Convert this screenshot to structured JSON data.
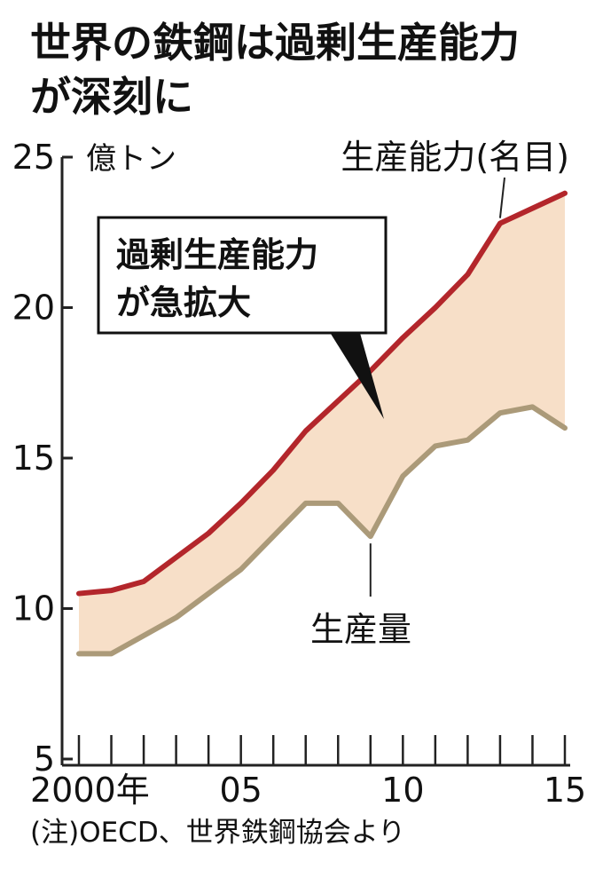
{
  "title_lines": [
    "世界の鉄鋼は過剰生産能力",
    "が深刻に"
  ],
  "note": "(注)OECD、世界鉄鋼協会より",
  "chart_data": {
    "type": "area",
    "title": "世界の鉄鋼は過剰生産能力が深刻に",
    "unit": "億トン",
    "ylim": [
      5,
      25
    ],
    "yticks": [
      5,
      10,
      15,
      20,
      25
    ],
    "xlim": [
      2000,
      2015
    ],
    "xticks": [
      {
        "x": 2000,
        "label": "2000年"
      },
      {
        "x": 2005,
        "label": "05"
      },
      {
        "x": 2010,
        "label": "10"
      },
      {
        "x": 2015,
        "label": "15"
      }
    ],
    "x": [
      2000,
      2001,
      2002,
      2003,
      2004,
      2005,
      2006,
      2007,
      2008,
      2009,
      2010,
      2011,
      2012,
      2013,
      2014,
      2015
    ],
    "series": [
      {
        "name": "生産能力(名目)",
        "color": "#b3262b",
        "values": [
          10.5,
          10.6,
          10.9,
          11.7,
          12.5,
          13.5,
          14.6,
          15.9,
          16.9,
          17.9,
          19.0,
          20.0,
          21.1,
          22.8,
          23.3,
          23.8
        ]
      },
      {
        "name": "生産量",
        "color": "#ab9a79",
        "values": [
          8.5,
          8.5,
          9.1,
          9.7,
          10.5,
          11.3,
          12.4,
          13.5,
          13.5,
          12.4,
          14.4,
          15.4,
          15.6,
          16.5,
          16.7,
          16.0
        ]
      }
    ],
    "fill_color": "#f7dfc8",
    "annotation": [
      "過剰生産能力",
      "が急拡大"
    ],
    "grid": false,
    "legend": "none"
  }
}
